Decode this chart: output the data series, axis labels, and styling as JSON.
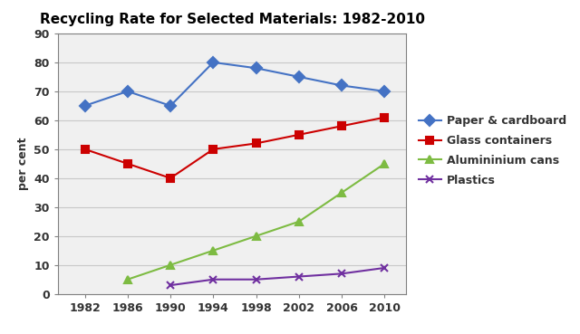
{
  "title": "Recycling Rate for Selected Materials: 1982-2010",
  "xlabel": "",
  "ylabel": "per cent",
  "years": [
    1982,
    1986,
    1990,
    1994,
    1998,
    2002,
    2006,
    2010
  ],
  "series": [
    {
      "label": "Paper & cardboard",
      "values": [
        65,
        70,
        65,
        80,
        78,
        75,
        72,
        70
      ],
      "color": "#4472C4",
      "marker": "D",
      "markersize": 6,
      "linewidth": 1.5,
      "skip_years": []
    },
    {
      "label": "Glass containers",
      "values": [
        50,
        45,
        40,
        50,
        52,
        55,
        58,
        61
      ],
      "color": "#CC0000",
      "marker": "s",
      "markersize": 6,
      "linewidth": 1.5,
      "skip_years": []
    },
    {
      "label": "Alumininium cans",
      "values": [
        0,
        5,
        10,
        15,
        20,
        25,
        35,
        45
      ],
      "color": "#7DBB42",
      "marker": "^",
      "markersize": 6,
      "linewidth": 1.5,
      "skip_years": [
        1982
      ]
    },
    {
      "label": "Plastics",
      "values": [
        0,
        0,
        3,
        5,
        5,
        6,
        7,
        9
      ],
      "color": "#7030A0",
      "marker": "x",
      "markersize": 6,
      "linewidth": 1.5,
      "skip_years": [
        1982,
        1986
      ]
    }
  ],
  "ylim": [
    0,
    90
  ],
  "yticks": [
    0,
    10,
    20,
    30,
    40,
    50,
    60,
    70,
    80,
    90
  ],
  "xticks": [
    1982,
    1986,
    1990,
    1994,
    1998,
    2002,
    2006,
    2010
  ],
  "plot_bg_color": "#f0f0f0",
  "fig_bg_color": "#ffffff",
  "grid_color": "#c8c8c8",
  "title_fontsize": 11,
  "tick_fontsize": 9,
  "ylabel_fontsize": 9,
  "legend_fontsize": 9
}
